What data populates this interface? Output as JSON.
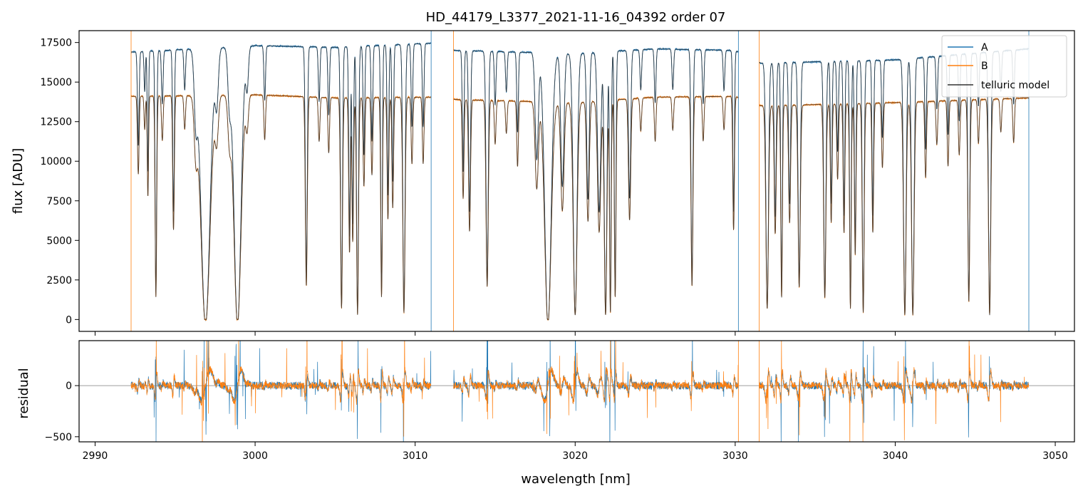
{
  "figure": {
    "title": "HD_44179_L3377_2021-11-16_04392  order 07"
  },
  "colors": {
    "A": "#1f77b4",
    "B": "#ff7f0e",
    "model": "#333333",
    "zero_line": "#7f7f7f"
  },
  "chart_data": [
    {
      "type": "line",
      "panel": "top",
      "title": "HD_44179_L3377_2021-11-16_04392  order 07",
      "xlabel": "",
      "ylabel": "flux [ADU]",
      "xlim": [
        2989.0,
        3051.2
      ],
      "ylim": [
        -750,
        18250
      ],
      "yticks": [
        0,
        2500,
        5000,
        7500,
        10000,
        12500,
        15000,
        17500
      ],
      "ytick_labels": [
        "0",
        "2500",
        "5000",
        "7500",
        "10000",
        "12500",
        "15000",
        "17500"
      ],
      "xticks": [
        2990,
        3000,
        3010,
        3020,
        3030,
        3040,
        3050
      ],
      "grid": false,
      "legend": {
        "position": "top-right",
        "entries": [
          "A",
          "B",
          "telluric model"
        ]
      },
      "continuum": {
        "A": [
          [
            2992.4,
            16900
          ],
          [
            3000,
            17300
          ],
          [
            3005,
            17200
          ],
          [
            3011,
            17450
          ],
          [
            3012.5,
            17000
          ],
          [
            3020,
            16800
          ],
          [
            3025,
            17100
          ],
          [
            3030,
            17000
          ],
          [
            3031.6,
            16200
          ],
          [
            3040,
            16400
          ],
          [
            3048.3,
            17100
          ]
        ],
        "B": [
          [
            2992.4,
            14100
          ],
          [
            3000,
            14200
          ],
          [
            3005,
            14000
          ],
          [
            3011,
            14050
          ],
          [
            3012.5,
            13900
          ],
          [
            3020,
            13700
          ],
          [
            3025,
            14050
          ],
          [
            3030,
            14100
          ],
          [
            3031.6,
            13500
          ],
          [
            3040,
            13700
          ],
          [
            3048.3,
            14000
          ]
        ]
      },
      "segments": [
        [
          2992.25,
          3011.0
        ],
        [
          3012.4,
          3030.2
        ],
        [
          3031.5,
          3048.35
        ]
      ],
      "absorption_lines": [
        [
          2992.7,
          0.35,
          0.05
        ],
        [
          2993.1,
          0.15,
          0.04
        ],
        [
          2993.3,
          0.45,
          0.04
        ],
        [
          2993.8,
          0.9,
          0.05
        ],
        [
          2994.2,
          0.2,
          0.05
        ],
        [
          2994.9,
          0.6,
          0.05
        ],
        [
          2995.6,
          0.15,
          0.05
        ],
        [
          2996.3,
          0.25,
          0.1
        ],
        [
          2996.9,
          1.02,
          0.28
        ],
        [
          2997.6,
          0.2,
          0.1
        ],
        [
          2998.4,
          0.2,
          0.1
        ],
        [
          2998.9,
          1.02,
          0.22
        ],
        [
          2999.5,
          0.15,
          0.08
        ],
        [
          3000.6,
          0.2,
          0.05
        ],
        [
          3003.2,
          0.85,
          0.06
        ],
        [
          3004.0,
          0.2,
          0.05
        ],
        [
          3004.6,
          0.25,
          0.05
        ],
        [
          3005.4,
          0.95,
          0.06
        ],
        [
          3005.9,
          0.7,
          0.05
        ],
        [
          3006.1,
          0.65,
          0.05
        ],
        [
          3006.4,
          0.98,
          0.06
        ],
        [
          3006.8,
          0.4,
          0.05
        ],
        [
          3007.3,
          0.35,
          0.05
        ],
        [
          3007.9,
          0.9,
          0.05
        ],
        [
          3008.3,
          0.55,
          0.05
        ],
        [
          3008.6,
          0.5,
          0.05
        ],
        [
          3009.3,
          0.97,
          0.07
        ],
        [
          3009.8,
          0.3,
          0.05
        ],
        [
          3010.5,
          0.3,
          0.05
        ],
        [
          3013.0,
          0.45,
          0.05
        ],
        [
          3013.4,
          0.6,
          0.06
        ],
        [
          3014.5,
          0.85,
          0.07
        ],
        [
          3015.0,
          0.2,
          0.05
        ],
        [
          3015.7,
          0.15,
          0.05
        ],
        [
          3016.4,
          0.3,
          0.05
        ],
        [
          3017.6,
          0.4,
          0.1
        ],
        [
          3018.3,
          1.02,
          0.2
        ],
        [
          3019.2,
          0.5,
          0.1
        ],
        [
          3020.0,
          0.98,
          0.12
        ],
        [
          3020.8,
          0.55,
          0.08
        ],
        [
          3021.5,
          0.6,
          0.1
        ],
        [
          3021.9,
          0.98,
          0.08
        ],
        [
          3022.2,
          0.97,
          0.05
        ],
        [
          3022.5,
          0.9,
          0.05
        ],
        [
          3023.4,
          0.55,
          0.07
        ],
        [
          3024.1,
          0.15,
          0.05
        ],
        [
          3025.0,
          0.2,
          0.05
        ],
        [
          3026.1,
          0.15,
          0.05
        ],
        [
          3027.3,
          0.85,
          0.06
        ],
        [
          3028.0,
          0.2,
          0.05
        ],
        [
          3029.3,
          0.15,
          0.05
        ],
        [
          3029.9,
          0.6,
          0.05
        ],
        [
          3032.0,
          0.95,
          0.08
        ],
        [
          3032.5,
          0.6,
          0.06
        ],
        [
          3032.9,
          0.9,
          0.05
        ],
        [
          3033.4,
          0.55,
          0.06
        ],
        [
          3034.0,
          0.85,
          0.07
        ],
        [
          3035.6,
          0.9,
          0.07
        ],
        [
          3036.0,
          0.55,
          0.05
        ],
        [
          3036.4,
          0.35,
          0.05
        ],
        [
          3036.8,
          0.6,
          0.05
        ],
        [
          3037.2,
          0.95,
          0.05
        ],
        [
          3037.5,
          0.7,
          0.05
        ],
        [
          3038.0,
          0.97,
          0.06
        ],
        [
          3038.6,
          0.6,
          0.05
        ],
        [
          3039.2,
          0.3,
          0.05
        ],
        [
          3040.6,
          0.98,
          0.08
        ],
        [
          3041.1,
          0.98,
          0.08
        ],
        [
          3041.9,
          0.35,
          0.05
        ],
        [
          3042.6,
          0.2,
          0.05
        ],
        [
          3043.3,
          0.3,
          0.05
        ],
        [
          3044.0,
          0.25,
          0.05
        ],
        [
          3044.6,
          0.92,
          0.06
        ],
        [
          3045.2,
          0.2,
          0.05
        ],
        [
          3045.9,
          0.98,
          0.07
        ],
        [
          3046.6,
          0.15,
          0.05
        ],
        [
          3047.4,
          0.2,
          0.05
        ]
      ]
    },
    {
      "type": "line",
      "panel": "bottom",
      "xlabel": "wavelength [nm]",
      "ylabel": "residual",
      "xlim": [
        2989.0,
        3051.2
      ],
      "ylim": [
        -550,
        440
      ],
      "yticks": [
        -500,
        0
      ],
      "ytick_labels": [
        "−500",
        "0"
      ],
      "xticks": [
        2990,
        3000,
        3010,
        3020,
        3030,
        3040,
        3050
      ],
      "xtick_labels": [
        "2990",
        "3000",
        "3010",
        "3020",
        "3030",
        "3040",
        "3050"
      ],
      "zero_line": 0,
      "series": [
        {
          "name": "A",
          "noise_amplitude": 40,
          "spike_amplitude": 600
        },
        {
          "name": "B",
          "noise_amplitude": 35,
          "spike_amplitude": 600
        }
      ]
    }
  ]
}
